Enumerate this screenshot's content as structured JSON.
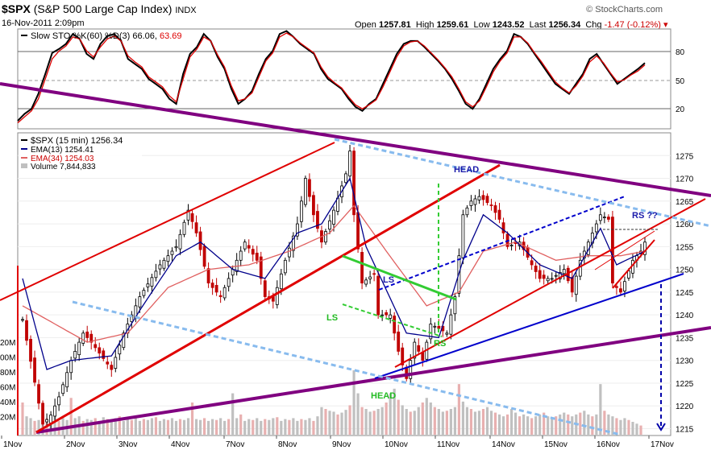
{
  "header": {
    "symbol": "$SPX",
    "name": "(S&P 500 Large Cap Index)",
    "exchange": "INDX",
    "date": "16-Nov-2011 2:09pm",
    "open_label": "Open",
    "open": "1257.81",
    "high_label": "High",
    "high": "1259.61",
    "low_label": "Low",
    "low": "1243.52",
    "last_label": "Last",
    "last": "1256.34",
    "chg_label": "Chg",
    "chg": "-1.47 (-0.12%)",
    "brand": "© StockCharts.com"
  },
  "colors": {
    "price": "#000000",
    "up_candle": "#ffffff",
    "ema13": "#00008b",
    "ema34": "#e06060",
    "stoch_k": "#000000",
    "stoch_d": "#dd0000",
    "trend_purple": "#800080",
    "trend_red": "#e00000",
    "trend_blue": "#0000cc",
    "dotted_blue": "#88bbee",
    "dashed_green": "#33cc33",
    "volume_bar": "#c0c0c0"
  },
  "chart_data": [
    {
      "type": "line",
      "title": "Slow STO %K(60) %D(3) 66.06, 63.69",
      "legend_label": "Slow STO %K(60) %D(3)",
      "k_value": "66.06",
      "d_value": "63.69",
      "ylim": [
        0,
        100
      ],
      "y_ticks": [
        "80",
        "50",
        "20"
      ],
      "series": [
        {
          "name": "%K",
          "values": [
            8,
            15,
            20,
            35,
            55,
            76,
            80,
            85,
            95,
            90,
            75,
            70,
            85,
            93,
            95,
            88,
            70,
            65,
            60,
            50,
            45,
            40,
            30,
            25,
            55,
            75,
            82,
            95,
            88,
            72,
            60,
            40,
            25,
            30,
            38,
            55,
            70,
            78,
            95,
            98,
            92,
            85,
            80,
            75,
            60,
            50,
            45,
            40,
            30,
            22,
            18,
            25,
            30,
            45,
            60,
            75,
            85,
            88,
            88,
            82,
            75,
            68,
            60,
            50,
            38,
            25,
            20,
            30,
            45,
            60,
            70,
            78,
            95,
            92,
            85,
            75,
            65,
            55,
            45,
            40,
            35,
            45,
            55,
            70,
            75,
            65,
            55,
            45,
            50,
            55,
            60,
            66
          ]
        },
        {
          "name": "%D",
          "values": [
            6,
            12,
            18,
            30,
            50,
            70,
            78,
            83,
            92,
            90,
            78,
            72,
            82,
            90,
            93,
            88,
            73,
            67,
            62,
            52,
            47,
            42,
            33,
            27,
            50,
            72,
            80,
            92,
            88,
            74,
            62,
            43,
            28,
            30,
            36,
            52,
            68,
            76,
            92,
            96,
            92,
            86,
            81,
            76,
            62,
            52,
            46,
            41,
            32,
            24,
            20,
            24,
            29,
            42,
            57,
            72,
            83,
            87,
            88,
            83,
            76,
            69,
            61,
            52,
            40,
            27,
            22,
            28,
            42,
            57,
            68,
            76,
            92,
            92,
            86,
            76,
            67,
            57,
            47,
            41,
            36,
            43,
            53,
            67,
            73,
            66,
            56,
            47,
            49,
            54,
            58,
            64
          ]
        }
      ]
    },
    {
      "type": "line",
      "title": "$SPX (15 min) 1256.34",
      "legend": [
        {
          "label": "$SPX (15 min) 1256.34"
        },
        {
          "label": "EMA(13) 1254.41"
        },
        {
          "label": "EMA(34) 1254.03"
        },
        {
          "label": "Volume 7,844,833"
        }
      ],
      "x_ticks": [
        "1Nov",
        "2Nov",
        "3Nov",
        "4Nov",
        "7Nov",
        "8Nov",
        "9Nov",
        "10Nov",
        "11Nov",
        "14Nov",
        "15Nov",
        "16Nov",
        "17Nov"
      ],
      "ylim": [
        1213.5,
        1280
      ],
      "y_ticks": [
        1275,
        1270,
        1265,
        1260,
        1255,
        1250,
        1245,
        1240,
        1235,
        1230,
        1225,
        1220,
        1215
      ],
      "volume_ticks": [
        "20M",
        "00M",
        "80M",
        "60M",
        "40M",
        "20M"
      ],
      "price_waypoints": [
        [
          0,
          1239
        ],
        [
          5,
          1216
        ],
        [
          7,
          1218
        ],
        [
          9,
          1222
        ],
        [
          12,
          1230
        ],
        [
          15,
          1236
        ],
        [
          17,
          1234
        ],
        [
          22,
          1228
        ],
        [
          25,
          1236
        ],
        [
          29,
          1244
        ],
        [
          34,
          1251
        ],
        [
          38,
          1255
        ],
        [
          41,
          1263
        ],
        [
          43,
          1258
        ],
        [
          46,
          1247
        ],
        [
          49,
          1244
        ],
        [
          52,
          1250
        ],
        [
          55,
          1256
        ],
        [
          58,
          1252
        ],
        [
          60,
          1244
        ],
        [
          62,
          1243
        ],
        [
          65,
          1252
        ],
        [
          68,
          1260
        ],
        [
          70,
          1270
        ],
        [
          72,
          1262
        ],
        [
          74,
          1256
        ],
        [
          77,
          1263
        ],
        [
          80,
          1271
        ],
        [
          81,
          1276
        ],
        [
          82,
          1262
        ],
        [
          84,
          1247
        ],
        [
          87,
          1249
        ],
        [
          88,
          1240
        ],
        [
          91,
          1240
        ],
        [
          93,
          1232
        ],
        [
          95,
          1226
        ],
        [
          97,
          1234
        ],
        [
          99,
          1230
        ],
        [
          101,
          1238
        ],
        [
          103,
          1237
        ],
        [
          105,
          1236
        ],
        [
          107,
          1244
        ],
        [
          109,
          1262
        ],
        [
          111,
          1265
        ],
        [
          113,
          1266
        ],
        [
          116,
          1264
        ],
        [
          118,
          1261
        ],
        [
          120,
          1255
        ],
        [
          123,
          1256
        ],
        [
          126,
          1251
        ],
        [
          128,
          1248
        ],
        [
          131,
          1248
        ],
        [
          134,
          1250
        ],
        [
          136,
          1245
        ],
        [
          138,
          1252
        ],
        [
          141,
          1258
        ],
        [
          143,
          1262
        ],
        [
          145,
          1261
        ],
        [
          146,
          1247
        ],
        [
          148,
          1245
        ],
        [
          151,
          1252
        ],
        [
          153,
          1254
        ],
        [
          154,
          1256
        ]
      ],
      "ema13_waypoints": [
        [
          0,
          1248
        ],
        [
          6,
          1228
        ],
        [
          12,
          1230
        ],
        [
          22,
          1231
        ],
        [
          29,
          1241
        ],
        [
          38,
          1253
        ],
        [
          44,
          1256
        ],
        [
          52,
          1250
        ],
        [
          60,
          1248
        ],
        [
          68,
          1258
        ],
        [
          74,
          1260
        ],
        [
          81,
          1270
        ],
        [
          85,
          1255
        ],
        [
          95,
          1236
        ],
        [
          103,
          1235
        ],
        [
          109,
          1252
        ],
        [
          114,
          1262
        ],
        [
          120,
          1258
        ],
        [
          128,
          1251
        ],
        [
          136,
          1248
        ],
        [
          143,
          1259
        ],
        [
          147,
          1251
        ],
        [
          154,
          1254
        ]
      ],
      "ema34_waypoints": [
        [
          0,
          1242
        ],
        [
          8,
          1238
        ],
        [
          16,
          1234
        ],
        [
          26,
          1236
        ],
        [
          36,
          1246
        ],
        [
          46,
          1250
        ],
        [
          56,
          1251
        ],
        [
          66,
          1254
        ],
        [
          76,
          1258
        ],
        [
          82,
          1264
        ],
        [
          90,
          1254
        ],
        [
          100,
          1242
        ],
        [
          108,
          1245
        ],
        [
          114,
          1254
        ],
        [
          122,
          1256
        ],
        [
          132,
          1252
        ],
        [
          140,
          1253
        ],
        [
          148,
          1253
        ],
        [
          154,
          1254
        ]
      ],
      "volume_values": [
        35,
        20,
        18,
        15,
        16,
        17,
        18,
        20,
        22,
        15,
        18,
        16,
        40,
        18,
        20,
        15,
        17,
        16,
        18,
        15,
        19,
        17,
        16,
        18,
        20,
        15,
        17,
        16,
        18,
        15,
        17,
        16,
        18,
        19,
        15,
        17,
        16,
        18,
        15,
        17,
        16,
        18,
        35,
        17,
        16,
        18,
        15,
        17,
        16,
        18,
        15,
        17,
        45,
        18,
        22,
        15,
        17,
        16,
        18,
        15,
        17,
        16,
        18,
        19,
        15,
        17,
        16,
        18,
        15,
        17,
        16,
        18,
        15,
        20,
        30,
        28,
        26,
        25,
        22,
        24,
        27,
        32,
        70,
        45,
        30,
        28,
        25,
        26,
        28,
        30,
        35,
        45,
        50,
        38,
        32,
        28,
        25,
        26,
        30,
        35,
        40,
        35,
        30,
        28,
        25,
        26,
        28,
        30,
        55,
        36,
        30,
        28,
        25,
        26,
        28,
        30,
        26,
        24,
        22,
        20,
        22,
        28,
        24,
        20,
        22,
        20,
        18,
        20,
        22,
        24,
        20,
        18,
        20,
        22,
        24,
        22,
        20,
        22,
        24,
        26,
        22,
        20,
        22,
        55,
        26,
        22,
        20,
        18,
        16,
        18,
        16,
        14,
        12,
        10
      ],
      "annotations": [
        "HEAD",
        "LS",
        "RS ??",
        "LS",
        "RS",
        "HEAD"
      ]
    }
  ]
}
